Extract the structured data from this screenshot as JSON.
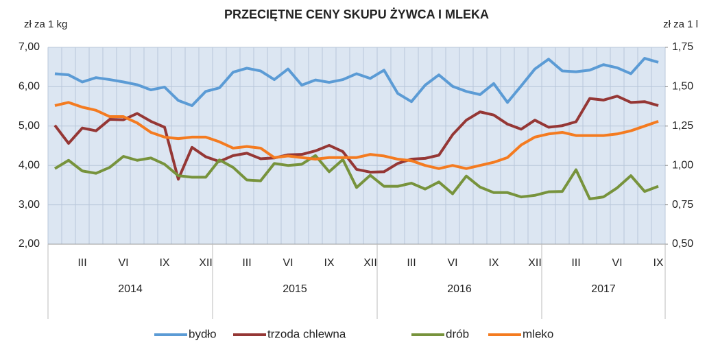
{
  "chart_data": {
    "type": "line",
    "title": "PRZECIĘTNE  CENY  SKUPU  ŻYWCA  I  MLEKA",
    "ylabel": "zł za 1 kg",
    "y2label": "zł za 1 l",
    "categories": [
      null,
      null,
      "III",
      null,
      null,
      "VI",
      null,
      null,
      "IX",
      null,
      null,
      "XII",
      null,
      null,
      "III",
      null,
      null,
      "VI",
      null,
      null,
      "IX",
      null,
      null,
      "XII",
      null,
      null,
      "III",
      null,
      null,
      "VI",
      null,
      null,
      "IX",
      null,
      null,
      "XII",
      null,
      null,
      "III",
      null,
      null,
      "VI",
      null,
      null,
      "IX"
    ],
    "groups": [
      {
        "name": "2014",
        "size": 12
      },
      {
        "name": "2015",
        "size": 12
      },
      {
        "name": "2016",
        "size": 12
      },
      {
        "name": "2017",
        "size": 9
      }
    ],
    "ylim": [
      2,
      7
    ],
    "yticks": [
      {
        "value": 2,
        "label": "2,00"
      },
      {
        "value": 3,
        "label": "3,00"
      },
      {
        "value": 4,
        "label": "4,00"
      },
      {
        "value": 5,
        "label": "5,00"
      },
      {
        "value": 6,
        "label": "6,00"
      },
      {
        "value": 7,
        "label": "7,00"
      }
    ],
    "y2lim": [
      0.5,
      1.75
    ],
    "y2ticks": [
      {
        "value": 0.5,
        "label": "0,50"
      },
      {
        "value": 0.75,
        "label": "0,75"
      },
      {
        "value": 1,
        "label": "1,00"
      },
      {
        "value": 1.25,
        "label": "1,25"
      },
      {
        "value": 1.5,
        "label": "1,50"
      },
      {
        "value": 1.75,
        "label": "1,75"
      }
    ],
    "grid": true,
    "legend": "bottom",
    "series": [
      {
        "name": "bydło",
        "color": "#5b9bd5",
        "values": [
          6.33,
          6.3,
          6.12,
          6.23,
          6.18,
          6.12,
          6.05,
          5.92,
          5.99,
          5.65,
          5.52,
          5.88,
          5.97,
          6.37,
          6.47,
          6.4,
          6.18,
          6.45,
          6.04,
          6.17,
          6.11,
          6.18,
          6.33,
          6.21,
          6.42,
          5.83,
          5.62,
          6.04,
          6.3,
          6.01,
          5.88,
          5.8,
          6.08,
          5.6,
          6.02,
          6.45,
          6.7,
          6.4,
          6.38,
          6.42,
          6.56,
          6.48,
          6.33,
          6.72,
          6.62
        ]
      },
      {
        "name": "trzoda chlewna",
        "color": "#953735",
        "values": [
          5.02,
          4.56,
          4.95,
          4.88,
          5.17,
          5.16,
          5.32,
          5.12,
          4.97,
          3.65,
          4.46,
          4.22,
          4.1,
          4.25,
          4.31,
          4.17,
          4.19,
          4.27,
          4.28,
          4.37,
          4.51,
          4.35,
          3.9,
          3.83,
          3.84,
          4.05,
          4.16,
          4.18,
          4.26,
          4.78,
          5.15,
          5.36,
          5.28,
          5.05,
          4.92,
          5.15,
          4.97,
          5.01,
          5.11,
          5.7,
          5.66,
          5.76,
          5.6,
          5.62,
          5.52
        ]
      },
      {
        "name": "drób",
        "color": "#77933c",
        "values": [
          3.92,
          4.13,
          3.86,
          3.8,
          3.95,
          4.23,
          4.13,
          4.19,
          4.03,
          3.74,
          3.7,
          3.7,
          4.14,
          3.95,
          3.63,
          3.61,
          4.05,
          4.0,
          4.03,
          4.25,
          3.84,
          4.15,
          3.44,
          3.75,
          3.47,
          3.47,
          3.55,
          3.4,
          3.58,
          3.28,
          3.73,
          3.45,
          3.31,
          3.31,
          3.2,
          3.24,
          3.33,
          3.34,
          3.89,
          3.15,
          3.2,
          3.43,
          3.74,
          3.34,
          3.47
        ]
      },
      {
        "name": "mleko",
        "color": "#f47b20",
        "axis": "y2",
        "values": [
          1.38,
          1.4,
          1.37,
          1.35,
          1.31,
          1.31,
          1.27,
          1.21,
          1.18,
          1.17,
          1.18,
          1.18,
          1.15,
          1.11,
          1.12,
          1.11,
          1.05,
          1.06,
          1.05,
          1.04,
          1.05,
          1.05,
          1.05,
          1.07,
          1.06,
          1.04,
          1.03,
          1.0,
          0.98,
          1.0,
          0.98,
          1.0,
          1.02,
          1.05,
          1.13,
          1.18,
          1.2,
          1.21,
          1.19,
          1.19,
          1.19,
          1.2,
          1.22,
          1.25,
          1.28
        ]
      }
    ]
  }
}
